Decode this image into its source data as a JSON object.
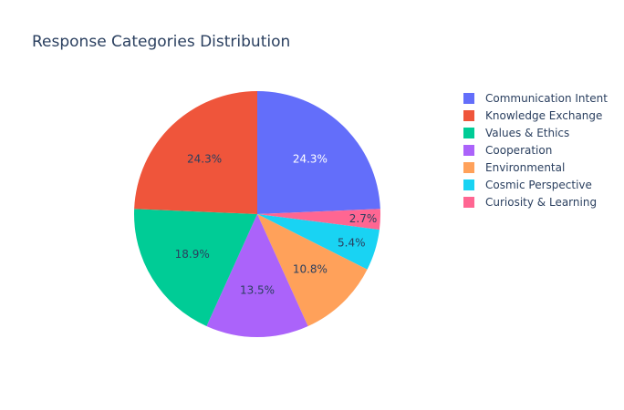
{
  "chart_data": {
    "type": "pie",
    "title": "Response Categories Distribution",
    "legend_position": "right",
    "direction": "clockwise",
    "start_angle": "12 o'clock",
    "categories": [
      "Communication Intent",
      "Knowledge Exchange",
      "Values & Ethics",
      "Cooperation",
      "Environmental",
      "Cosmic Perspective",
      "Curiosity & Learning"
    ],
    "values": [
      24.3,
      24.3,
      18.9,
      13.5,
      10.8,
      5.4,
      2.7
    ],
    "labels": [
      "24.3%",
      "24.3%",
      "18.9%",
      "13.5%",
      "10.8%",
      "5.4%",
      "2.7%"
    ],
    "slice_order": [
      "Communication Intent",
      "Curiosity & Learning",
      "Cosmic Perspective",
      "Environmental",
      "Cooperation",
      "Values & Ethics",
      "Knowledge Exchange"
    ],
    "colors": [
      "#636efa",
      "#ef553b",
      "#00cc96",
      "#ab63fa",
      "#ffa15a",
      "#19d3f3",
      "#ff6692"
    ],
    "label_colors": [
      "#ffffff",
      "#2a3f5f",
      "#2a3f5f",
      "#2a3f5f",
      "#2a3f5f",
      "#2a3f5f",
      "#2a3f5f"
    ]
  }
}
